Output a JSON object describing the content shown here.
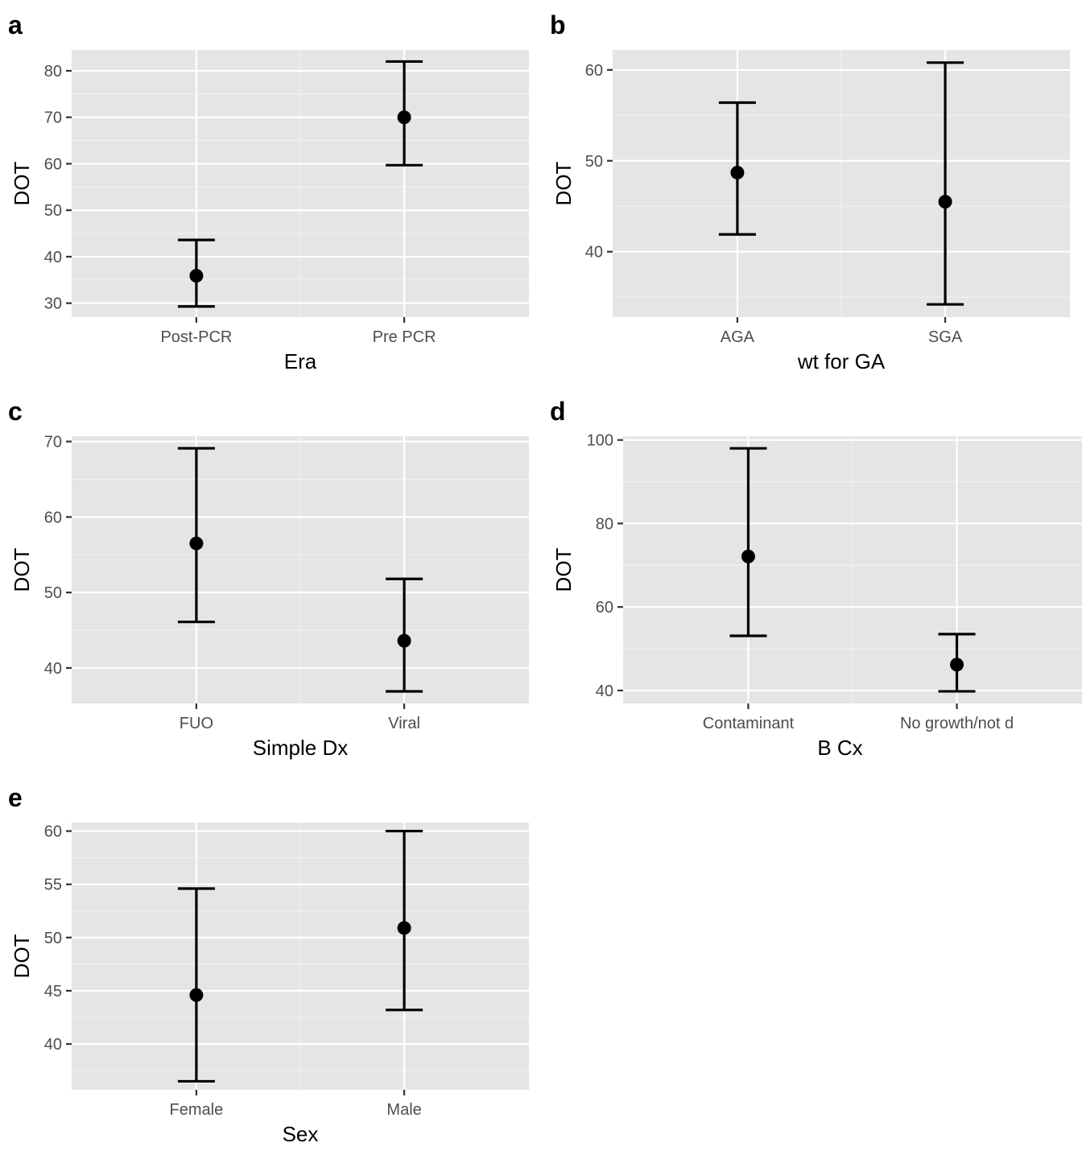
{
  "chart_data": [
    {
      "panel": "a",
      "type": "errorbar",
      "xlabel": "Era",
      "ylabel": "DOT",
      "categories": [
        "Post-PCR",
        "Pre PCR"
      ],
      "values": [
        35.9,
        70.0
      ],
      "lower": [
        29.3,
        59.7
      ],
      "upper": [
        43.6,
        82.0
      ],
      "ylim": [
        27.0,
        84.5
      ],
      "yticks": [
        30,
        40,
        50,
        60,
        70,
        80
      ],
      "ytick_labels": [
        "30",
        "40",
        "50",
        "60",
        "70",
        "80"
      ]
    },
    {
      "panel": "b",
      "type": "errorbar",
      "xlabel": "wt for GA",
      "ylabel": "DOT",
      "categories": [
        "AGA",
        "SGA"
      ],
      "values": [
        48.7,
        45.5
      ],
      "lower": [
        41.9,
        34.2
      ],
      "upper": [
        56.4,
        60.8
      ],
      "ylim": [
        32.8,
        62.2
      ],
      "yticks": [
        40,
        50,
        60
      ],
      "ytick_labels": [
        "40",
        "50",
        "60"
      ]
    },
    {
      "panel": "c",
      "type": "errorbar",
      "xlabel": "Simple Dx",
      "ylabel": "DOT",
      "categories": [
        "FUO",
        "Viral"
      ],
      "values": [
        56.5,
        43.6
      ],
      "lower": [
        46.1,
        36.9
      ],
      "upper": [
        69.1,
        51.8
      ],
      "ylim": [
        35.3,
        70.7
      ],
      "yticks": [
        40,
        50,
        60,
        70
      ],
      "ytick_labels": [
        "40",
        "50",
        "60",
        "70"
      ]
    },
    {
      "panel": "d",
      "type": "errorbar",
      "xlabel": "B Cx",
      "ylabel": "DOT",
      "categories": [
        "Contaminant",
        "No growth/not d"
      ],
      "values": [
        72.1,
        46.2
      ],
      "lower": [
        53.1,
        39.8
      ],
      "upper": [
        98.0,
        53.5
      ],
      "ylim": [
        36.9,
        100.9
      ],
      "yticks": [
        40,
        60,
        80,
        100
      ],
      "ytick_labels": [
        "40",
        "60",
        "80",
        "100"
      ]
    },
    {
      "panel": "e",
      "type": "errorbar",
      "xlabel": "Sex",
      "ylabel": "DOT",
      "categories": [
        "Female",
        "Male"
      ],
      "values": [
        44.6,
        50.9
      ],
      "lower": [
        36.5,
        43.2
      ],
      "upper": [
        54.6,
        60.0
      ],
      "ylim": [
        35.7,
        60.8
      ],
      "yticks": [
        40,
        45,
        50,
        55,
        60
      ],
      "ytick_labels": [
        "40",
        "45",
        "50",
        "55",
        "60"
      ]
    }
  ]
}
